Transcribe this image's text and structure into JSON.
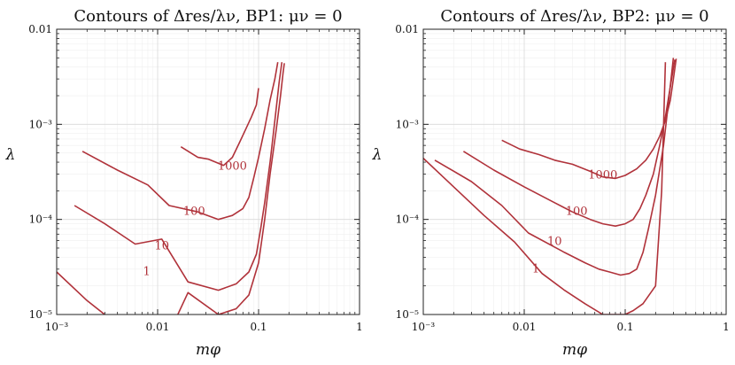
{
  "chart_data": [
    {
      "type": "line",
      "title": "Contours of Δres/λν, BP1: μν = 0",
      "xlabel": "mφ",
      "ylabel": "λ",
      "xscale": "log",
      "yscale": "log",
      "xlim": [
        0.001,
        1
      ],
      "ylim": [
        1e-05,
        0.01
      ],
      "x_tick_labels": [
        "10⁻³",
        "0.01",
        "0.1",
        "1"
      ],
      "y_tick_labels": [
        "10⁻⁵",
        "10⁻⁴",
        "10⁻³",
        "0.01"
      ],
      "grid": true,
      "color": "#b0323a",
      "series": [
        {
          "name": "1",
          "x": [
            0.001,
            0.002,
            0.005,
            0.01,
            0.02,
            0.04,
            0.06,
            0.08,
            0.1,
            0.115,
            0.13,
            0.15,
            0.165,
            0.175,
            0.18
          ],
          "y": [
            2.8e-05,
            1.4e-05,
            6.5e-06,
            3.5e-06,
            1.7e-05,
            1e-05,
            1.15e-05,
            1.6e-05,
            3.5e-05,
            0.0001,
            0.0003,
            0.0009,
            0.002,
            0.0035,
            0.0044
          ]
        },
        {
          "name": "10",
          "x": [
            0.0015,
            0.003,
            0.006,
            0.011,
            0.02,
            0.04,
            0.06,
            0.08,
            0.095,
            0.105,
            0.115,
            0.13,
            0.145,
            0.16,
            0.17
          ],
          "y": [
            0.00014,
            9e-05,
            5.5e-05,
            6.2e-05,
            2.2e-05,
            1.8e-05,
            2.1e-05,
            2.8e-05,
            4.3e-05,
            8e-05,
            0.00015,
            0.0004,
            0.0011,
            0.0028,
            0.0045
          ]
        },
        {
          "name": "100",
          "x": [
            0.0018,
            0.004,
            0.008,
            0.013,
            0.025,
            0.04,
            0.055,
            0.07,
            0.08,
            0.09,
            0.1,
            0.115,
            0.13,
            0.145,
            0.155
          ],
          "y": [
            0.00052,
            0.00033,
            0.00023,
            0.00014,
            0.00012,
            0.0001,
            0.00011,
            0.00013,
            0.00017,
            0.00028,
            0.00045,
            0.0009,
            0.0018,
            0.003,
            0.0045
          ]
        },
        {
          "name": "1000",
          "x": [
            0.017,
            0.025,
            0.032,
            0.045,
            0.055,
            0.065,
            0.075,
            0.085,
            0.095,
            0.1
          ],
          "y": [
            0.00058,
            0.00045,
            0.00043,
            0.00037,
            0.00045,
            0.00065,
            0.0009,
            0.0012,
            0.0016,
            0.0024
          ]
        }
      ],
      "contour_labels": [
        {
          "text": "1",
          "x": 0.0078,
          "y": 2.8e-05
        },
        {
          "text": "10",
          "x": 0.011,
          "y": 5.2e-05
        },
        {
          "text": "100",
          "x": 0.023,
          "y": 0.00012
        },
        {
          "text": "1000",
          "x": 0.055,
          "y": 0.00036
        }
      ]
    },
    {
      "type": "line",
      "title": "Contours of Δres/λν, BP2: μν = 0",
      "xlabel": "mφ",
      "ylabel": "λ",
      "xscale": "log",
      "yscale": "log",
      "xlim": [
        0.001,
        1
      ],
      "ylim": [
        1e-05,
        0.01
      ],
      "x_tick_labels": [
        "10⁻³",
        "0.01",
        "0.1",
        "1"
      ],
      "y_tick_labels": [
        "10⁻⁵",
        "10⁻⁴",
        "10⁻³",
        "0.01"
      ],
      "grid": true,
      "color": "#b0323a",
      "series": [
        {
          "name": "1",
          "x": [
            0.001,
            0.002,
            0.004,
            0.008,
            0.015,
            0.025,
            0.04,
            0.06,
            0.08,
            0.1,
            0.12,
            0.15,
            0.2,
            0.23,
            0.25
          ],
          "y": [
            0.00044,
            0.00022,
            0.00011,
            5.8e-05,
            2.7e-05,
            1.8e-05,
            1.3e-05,
            1e-05,
            1e-05,
            1e-05,
            1.1e-05,
            1.3e-05,
            2e-05,
            0.0002,
            0.0045
          ]
        },
        {
          "name": "10",
          "x": [
            0.0013,
            0.003,
            0.006,
            0.011,
            0.025,
            0.04,
            0.055,
            0.07,
            0.09,
            0.11,
            0.13,
            0.15,
            0.17,
            0.2,
            0.24,
            0.27,
            0.3
          ],
          "y": [
            0.00042,
            0.00025,
            0.00014,
            7.2e-05,
            4.5e-05,
            3.5e-05,
            3e-05,
            2.8e-05,
            2.6e-05,
            2.7e-05,
            3e-05,
            4.5e-05,
            8e-05,
            0.00018,
            0.0006,
            0.0018,
            0.005
          ]
        },
        {
          "name": "100",
          "x": [
            0.0025,
            0.005,
            0.01,
            0.02,
            0.03,
            0.045,
            0.06,
            0.08,
            0.1,
            0.12,
            0.14,
            0.16,
            0.19,
            0.22,
            0.25,
            0.28,
            0.31
          ],
          "y": [
            0.00052,
            0.00033,
            0.00022,
            0.00015,
            0.00012,
            0.0001,
            9e-05,
            8.5e-05,
            9e-05,
            0.0001,
            0.00013,
            0.00018,
            0.0003,
            0.0006,
            0.0012,
            0.0025,
            0.0048
          ]
        },
        {
          "name": "1000",
          "x": [
            0.006,
            0.009,
            0.014,
            0.02,
            0.03,
            0.045,
            0.06,
            0.08,
            0.1,
            0.13,
            0.16,
            0.19,
            0.22,
            0.25,
            0.28,
            0.3,
            0.32
          ],
          "y": [
            0.00068,
            0.00055,
            0.00048,
            0.00042,
            0.00038,
            0.00032,
            0.00028,
            0.00027,
            0.00029,
            0.00034,
            0.00042,
            0.00055,
            0.00075,
            0.0011,
            0.0018,
            0.003,
            0.0049
          ]
        }
      ],
      "contour_labels": [
        {
          "text": "1",
          "x": 0.013,
          "y": 3e-05
        },
        {
          "text": "10",
          "x": 0.02,
          "y": 5.8e-05
        },
        {
          "text": "100",
          "x": 0.033,
          "y": 0.00012
        },
        {
          "text": "1000",
          "x": 0.06,
          "y": 0.00029
        }
      ]
    }
  ]
}
